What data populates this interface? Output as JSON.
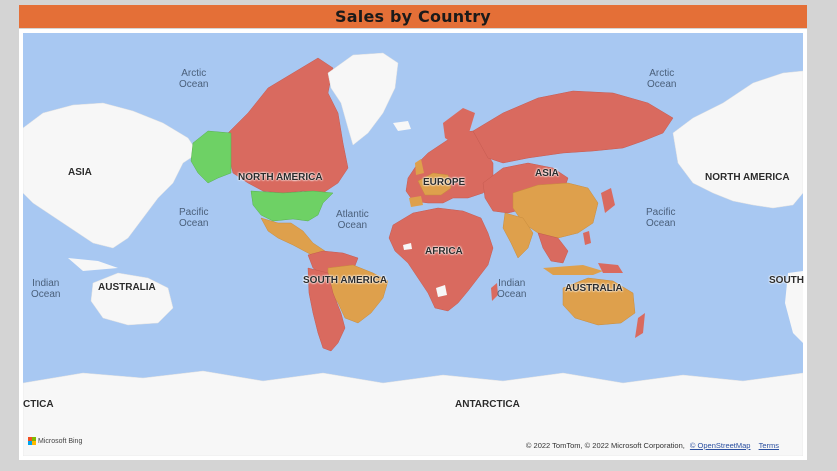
{
  "title": "Sales by Country",
  "colors": {
    "high": "#d96a5f",
    "mid": "#dea04c",
    "low": "#6ed165",
    "water": "#a8c8f2",
    "land_nodata": "#f7f7f7",
    "title_bg": "#e46f37"
  },
  "continent_labels": {
    "asia_left": "ASIA",
    "north_america": "NORTH AMERICA",
    "europe": "EUROPE",
    "asia": "ASIA",
    "north_america_right": "NORTH AMERICA",
    "africa": "AFRICA",
    "australia_left": "AUSTRALIA",
    "south_america": "SOUTH AMERICA",
    "australia": "AUSTRALIA",
    "south_right": "SOUTH",
    "antarctica_left": "CTICA",
    "antarctica": "ANTARCTICA"
  },
  "ocean_labels": {
    "arctic_left": "Arctic\nOcean",
    "arctic_right": "Arctic\nOcean",
    "pacific_left": "Pacific\nOcean",
    "atlantic": "Atlantic\nOcean",
    "pacific_right": "Pacific\nOcean",
    "indian_left": "Indian\nOcean",
    "indian_right": "Indian\nOcean"
  },
  "branding": "Microsoft Bing",
  "attribution": {
    "text": "© 2022 TomTom, © 2022 Microsoft Corporation,",
    "osm_link": "© OpenStreetMap",
    "terms_link": "Terms"
  }
}
